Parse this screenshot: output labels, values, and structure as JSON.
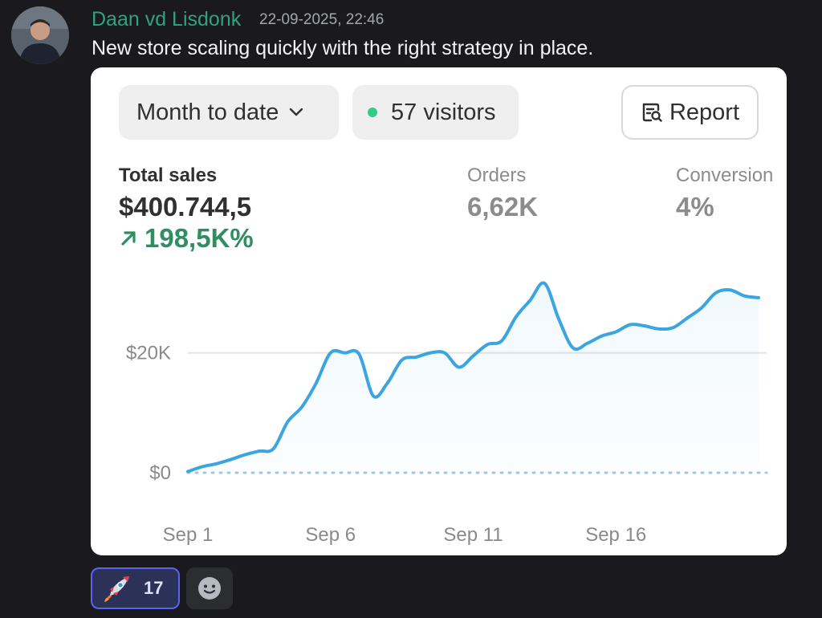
{
  "message": {
    "author": "Daan vd Lisdonk",
    "timestamp": "22-09-2025, 22:46",
    "text": "New store scaling quickly with the right strategy in place."
  },
  "dashboard": {
    "date_range": "Month to date",
    "visitors": "57 visitors",
    "report_label": "Report",
    "metrics": {
      "total_sales_label": "Total sales",
      "total_sales_value": "$400.744,5",
      "total_sales_change": "198,5K%",
      "orders_label": "Orders",
      "orders_value": "6,62K",
      "conversion_label": "Conversion",
      "conversion_value": "4%"
    },
    "colors": {
      "line": "#3aa5e0",
      "positive": "#2f8f61",
      "status_dot": "#33cc86"
    }
  },
  "chart_data": {
    "type": "area",
    "x_tick_labels": [
      "Sep 1",
      "Sep 6",
      "Sep 11",
      "Sep 16"
    ],
    "y_tick_labels": [
      "$0",
      "$20K"
    ],
    "x": [
      1,
      1.5,
      2,
      2.5,
      3,
      3.5,
      4,
      4.5,
      5,
      5.5,
      6,
      6.5,
      7,
      7.5,
      8,
      8.5,
      9,
      9.5,
      10,
      10.5,
      11,
      11.5,
      12,
      12.5,
      13,
      13.5,
      14,
      14.5,
      15,
      15.5,
      16,
      16.5,
      17,
      17.5,
      18,
      18.5,
      19,
      19.5,
      20,
      20.5,
      21
    ],
    "values": [
      200,
      1000,
      1500,
      2200,
      3000,
      3600,
      4000,
      8500,
      11000,
      15000,
      20000,
      20000,
      19800,
      12800,
      15000,
      18800,
      19300,
      20000,
      20000,
      17600,
      19500,
      21400,
      22000,
      26000,
      28800,
      31600,
      25600,
      20800,
      21600,
      22800,
      23500,
      24700,
      24500,
      24000,
      24200,
      25800,
      27500,
      30000,
      30500,
      29500,
      29200
    ],
    "ylim": [
      0,
      32000
    ],
    "xlim": [
      1,
      21
    ],
    "grid": true
  },
  "reactions": [
    {
      "icon": "rocket-icon",
      "count": "17",
      "active": true
    }
  ]
}
